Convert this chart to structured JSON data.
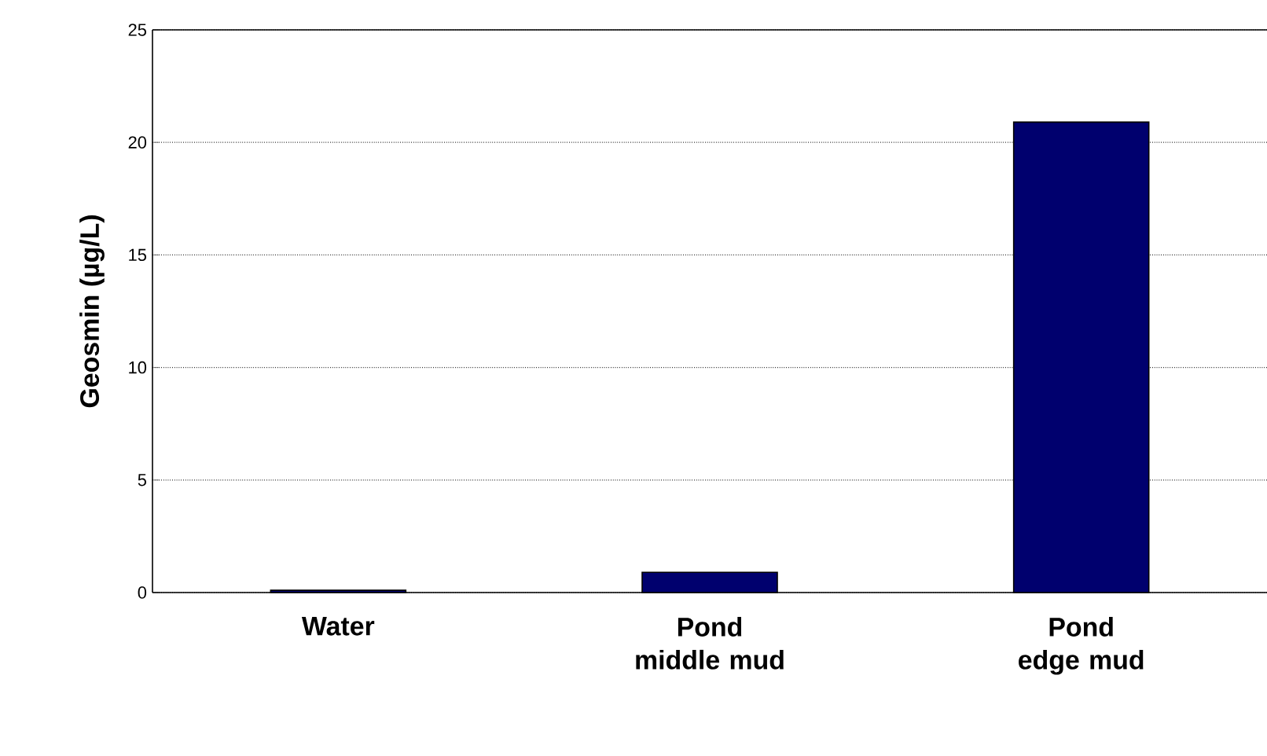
{
  "chart_data": {
    "type": "bar",
    "ylabel": "Geosmin (µg/L)",
    "categories": [
      "Water",
      "Pond middle mud",
      "Pond edge mud"
    ],
    "values": [
      0.1,
      0.9,
      20.9
    ],
    "color": "#00006e",
    "ylim": [
      0,
      25
    ],
    "yticks": [
      0,
      5,
      10,
      15,
      20,
      25
    ],
    "grid": "y"
  }
}
